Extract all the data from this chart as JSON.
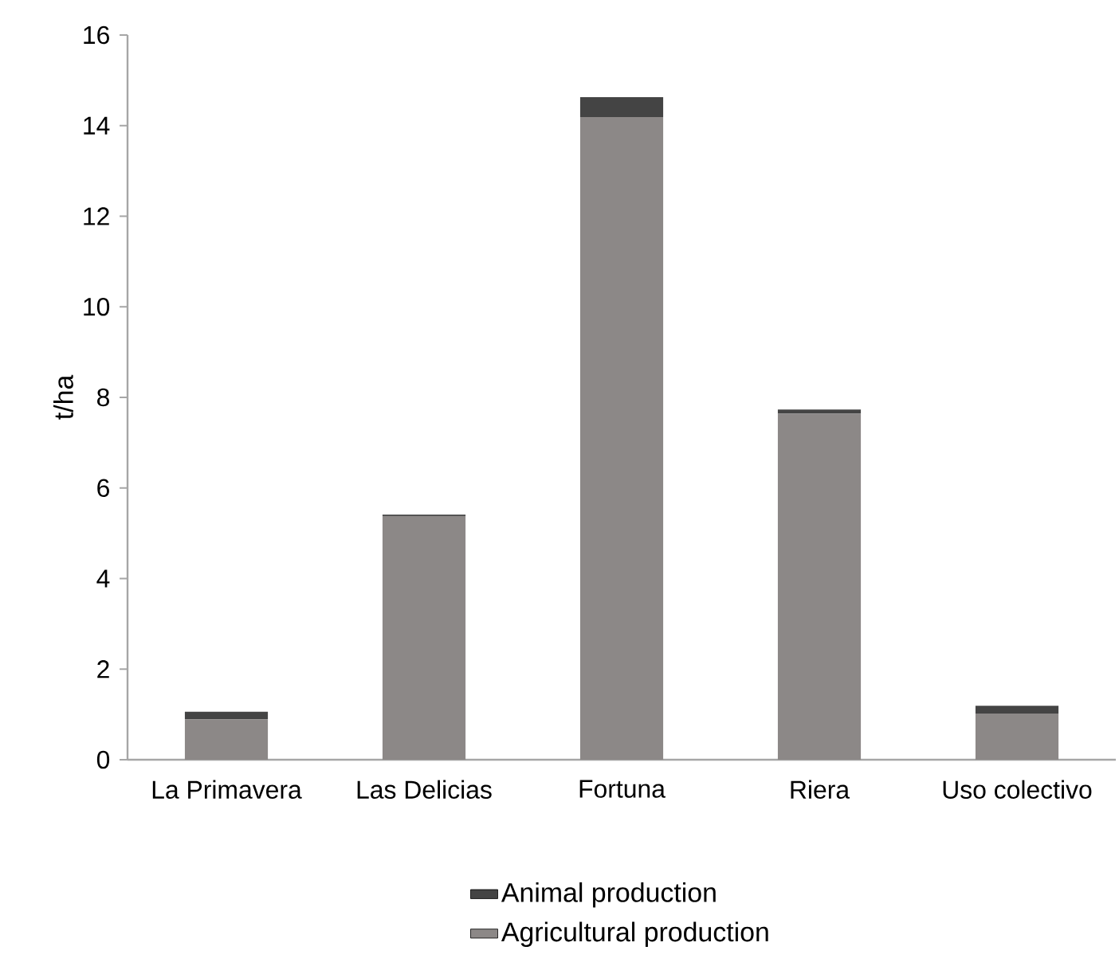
{
  "chart_data": {
    "type": "bar",
    "stacked": true,
    "ylabel": "t/ha",
    "categories": [
      "La Primavera",
      "Las Delicias",
      "Fortuna",
      "Riera",
      "Uso colectivo"
    ],
    "series": [
      {
        "name": "Agricultural production",
        "color": "#8c8887",
        "values": [
          0.89,
          5.38,
          14.19,
          7.64,
          1.02
        ]
      },
      {
        "name": "Animal production",
        "color": "#444444",
        "values": [
          0.17,
          0.03,
          0.44,
          0.09,
          0.17
        ]
      }
    ],
    "ylim": [
      0,
      16
    ],
    "yticks": [
      0,
      2,
      4,
      6,
      8,
      10,
      12,
      14,
      16
    ],
    "legend": "bottom"
  }
}
